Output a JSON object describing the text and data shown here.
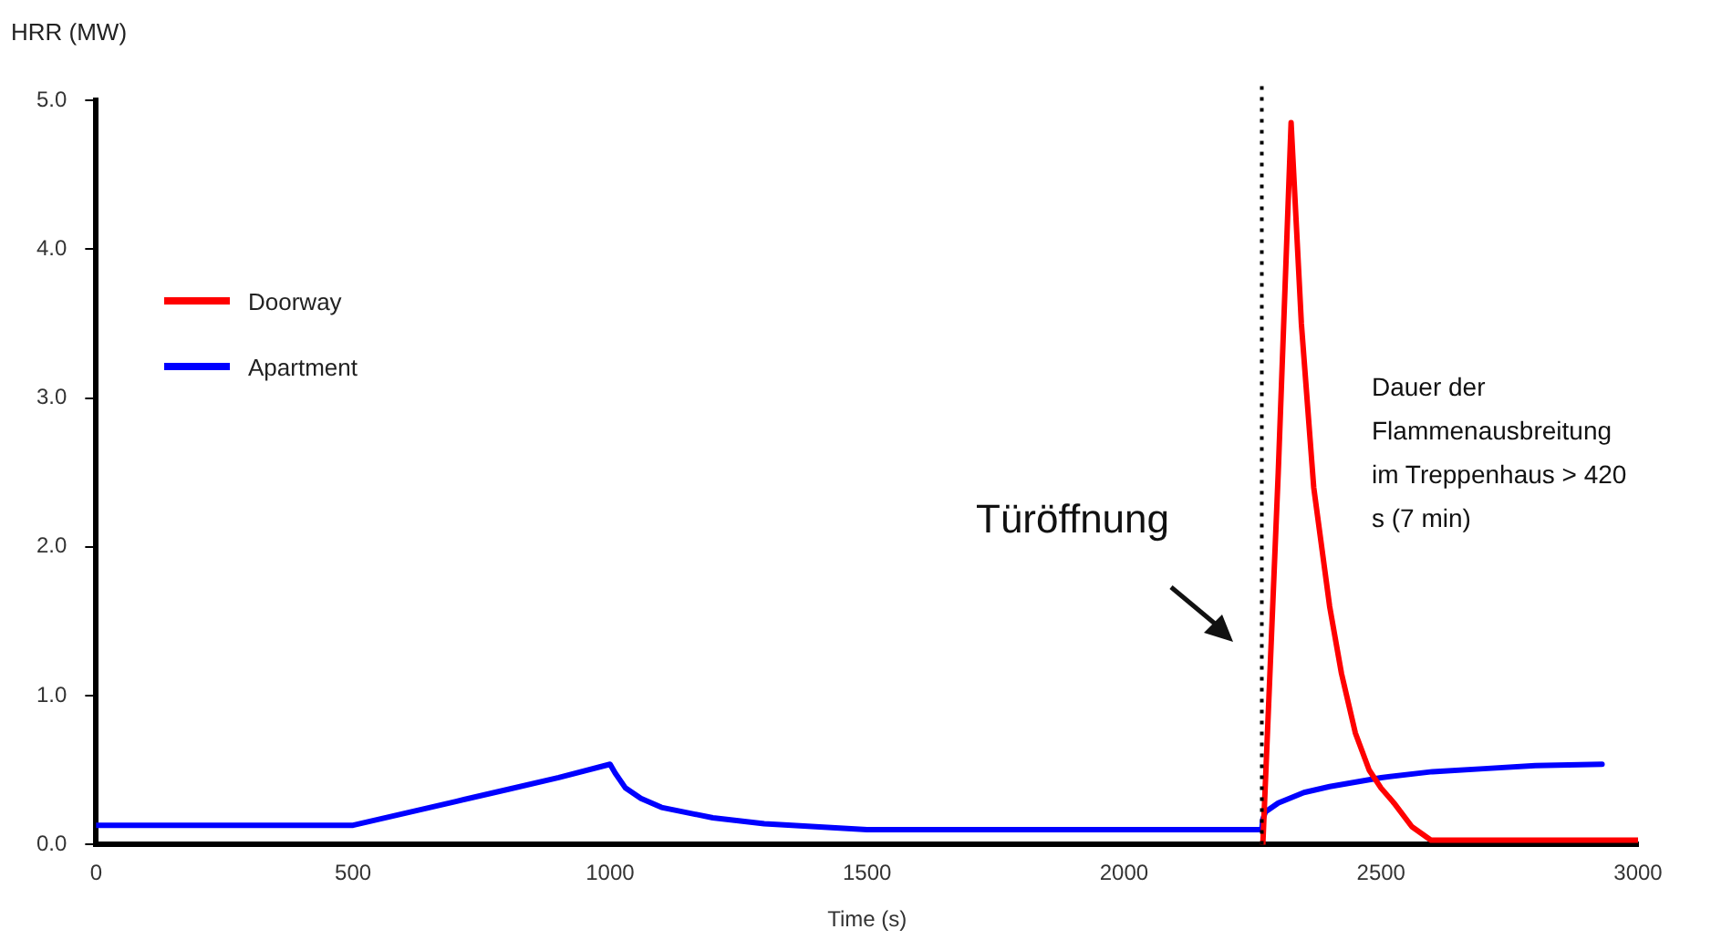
{
  "chart_data": {
    "type": "line",
    "xlabel": "Time (s)",
    "ylabel": "HRR (MW)",
    "xlim": [
      0,
      3000
    ],
    "xticks": [
      0,
      500,
      1000,
      1500,
      2000,
      2500,
      3000
    ],
    "ylim": [
      0,
      5
    ],
    "yticks": [
      {
        "value": 0,
        "label": "0.0"
      },
      {
        "value": 1,
        "label": "1.0"
      },
      {
        "value": 2,
        "label": "2.0"
      },
      {
        "value": 3,
        "label": "3.0"
      },
      {
        "value": 4,
        "label": "4.0"
      },
      {
        "value": 5,
        "label": "5.0"
      }
    ],
    "grid": false,
    "legend": "top left",
    "marker": "none",
    "line_style": "solid",
    "series": [
      {
        "name": "Doorway",
        "color": "#ff0000",
        "x": [
          2270,
          2300,
          2325,
          2345,
          2369,
          2400,
          2423,
          2450,
          2477,
          2500,
          2525,
          2560,
          2597,
          2650,
          3000
        ],
        "values": [
          0,
          2.5,
          4.85,
          3.5,
          2.4,
          1.6,
          1.15,
          0.75,
          0.5,
          0.38,
          0.28,
          0.12,
          0.03,
          0.03,
          0.03
        ]
      },
      {
        "name": "Apartment",
        "color": "#0000ff",
        "x": [
          0,
          500,
          600,
          700,
          800,
          900,
          1000,
          1010,
          1030,
          1060,
          1100,
          1200,
          1300,
          1400,
          1500,
          2000,
          2268,
          2270,
          2275,
          2300,
          2350,
          2400,
          2500,
          2600,
          2700,
          2800,
          2930
        ],
        "values": [
          0.13,
          0.13,
          0.21,
          0.29,
          0.37,
          0.45,
          0.54,
          0.48,
          0.38,
          0.31,
          0.25,
          0.18,
          0.14,
          0.12,
          0.1,
          0.1,
          0.1,
          0.17,
          0.22,
          0.28,
          0.35,
          0.39,
          0.45,
          0.49,
          0.51,
          0.53,
          0.54
        ]
      }
    ],
    "ref_lines": [
      {
        "axis": "x",
        "value": 2268,
        "label": "Türöffnung",
        "color": "#000000",
        "line_style": "dotted"
      }
    ],
    "annotations": [
      "Dauer der Flammenausbreitung im  Treppenhaus > 420 s (7 min)"
    ]
  }
}
